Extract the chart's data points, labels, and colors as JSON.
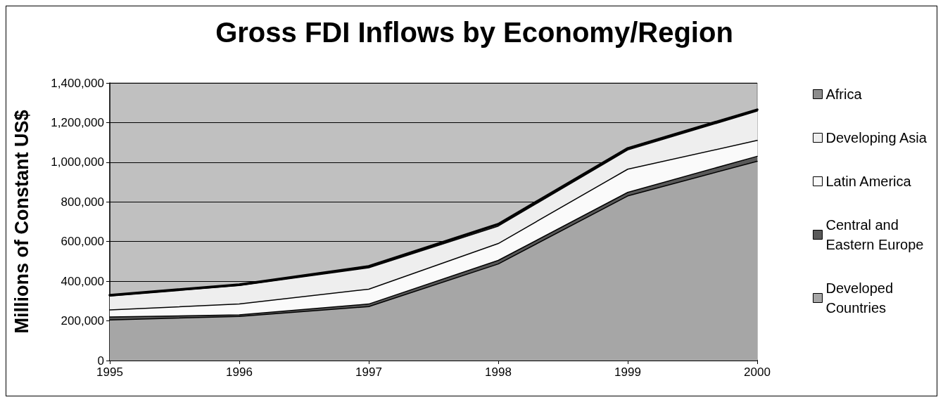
{
  "chart_data": {
    "type": "area",
    "title": "Gross FDI Inflows by Economy/Region",
    "ylabel": "Millions of Constant US$",
    "categories": [
      "1995",
      "1996",
      "1997",
      "1998",
      "1999",
      "2000"
    ],
    "stacked": true,
    "series": [
      {
        "name": "Developed Countries",
        "color": "#a6a6a6",
        "values": [
          205000,
          222000,
          272000,
          487000,
          830000,
          1005000
        ]
      },
      {
        "name": "Central and Eastern Europe",
        "color": "#595959",
        "values": [
          15000,
          8000,
          13000,
          18000,
          18000,
          25000
        ]
      },
      {
        "name": "Latin America",
        "color": "#fafafa",
        "values": [
          35000,
          55000,
          75000,
          85000,
          117000,
          80000
        ]
      },
      {
        "name": "Developing Asia",
        "color": "#eeeeee",
        "values": [
          70000,
          93000,
          108000,
          88000,
          97000,
          148000
        ]
      },
      {
        "name": "Africa",
        "color": "#8c8c8c",
        "values": [
          5000,
          5000,
          7000,
          10000,
          8000,
          7000
        ]
      }
    ],
    "ylim": [
      0,
      1400000
    ],
    "yticks": [
      0,
      {
        "value": 200000,
        "label": "200,000"
      },
      {
        "value": 400000,
        "label": "400,000"
      },
      {
        "value": 600000,
        "label": "600,000"
      },
      {
        "value": 800000,
        "label": "800,000"
      },
      {
        "value": 1000000,
        "label": "1,000,000"
      },
      {
        "value": 1200000,
        "label": "1,200,000"
      },
      {
        "value": 1400000,
        "label": "1,400,000"
      }
    ],
    "grid": "y",
    "legend": "right",
    "marker": "none",
    "line_style": "solid"
  }
}
